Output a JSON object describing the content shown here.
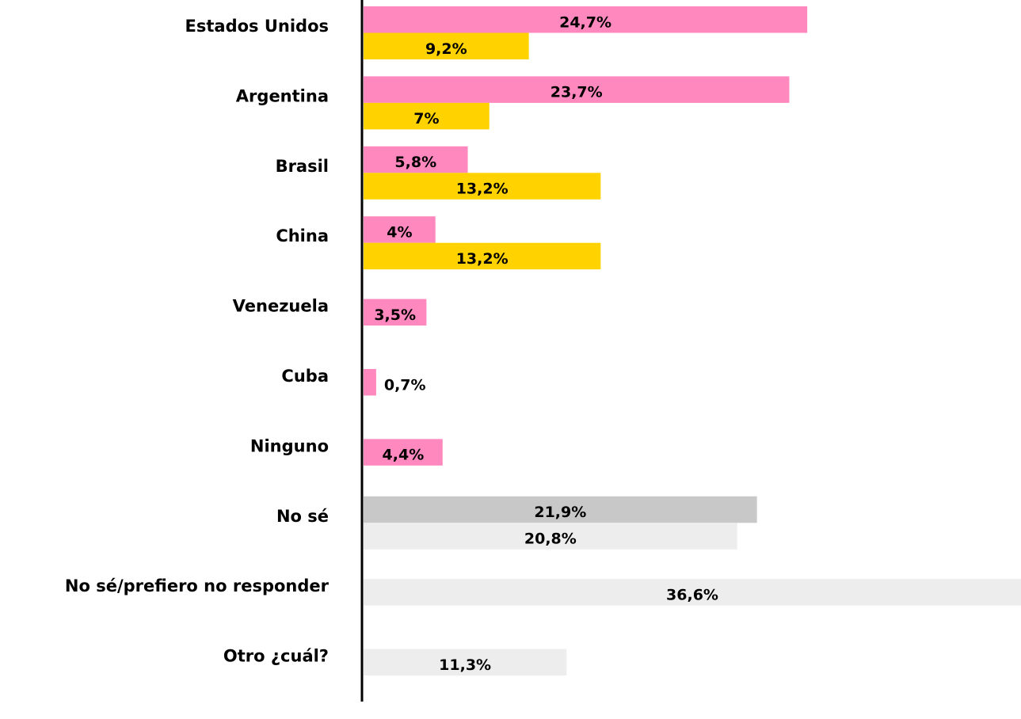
{
  "chart_data": {
    "type": "bar",
    "orientation": "horizontal",
    "categories": [
      "Estados Unidos",
      "Argentina",
      "Brasil",
      "China",
      "Venezuela",
      "Cuba",
      "Ninguno",
      "No sé",
      "No sé/prefiero no responder",
      "Otro ¿cuál?"
    ],
    "series": [
      {
        "color": "#ff88bf",
        "colors": [
          "#ff88bf",
          "#ff88bf",
          "#ff88bf",
          "#ff88bf",
          "#ff88bf",
          "#ff88bf",
          "#ff88bf",
          "#c8c8c8",
          null,
          null
        ],
        "values": [
          24.7,
          23.7,
          5.8,
          4,
          3.5,
          0.7,
          4.4,
          21.9,
          null,
          null
        ],
        "value_labels": [
          "24,7%",
          "23,7%",
          "5,8%",
          "4%",
          "3,5%",
          "0,7%",
          "4,4%",
          "21,9%",
          null,
          null
        ]
      },
      {
        "color": "#ffd200",
        "colors": [
          "#ffd200",
          "#ffd200",
          "#ffd200",
          "#ffd200",
          null,
          null,
          null,
          "#ededed",
          "#ededed",
          "#ededed"
        ],
        "values": [
          9.2,
          7,
          13.2,
          13.2,
          null,
          null,
          null,
          20.8,
          36.6,
          11.3
        ],
        "value_labels": [
          "9,2%",
          "7%",
          "13,2%",
          "13,2%",
          null,
          null,
          null,
          "20,8%",
          "36,6%",
          "11,3%"
        ]
      }
    ],
    "xlim": [
      0,
      36.6
    ]
  }
}
